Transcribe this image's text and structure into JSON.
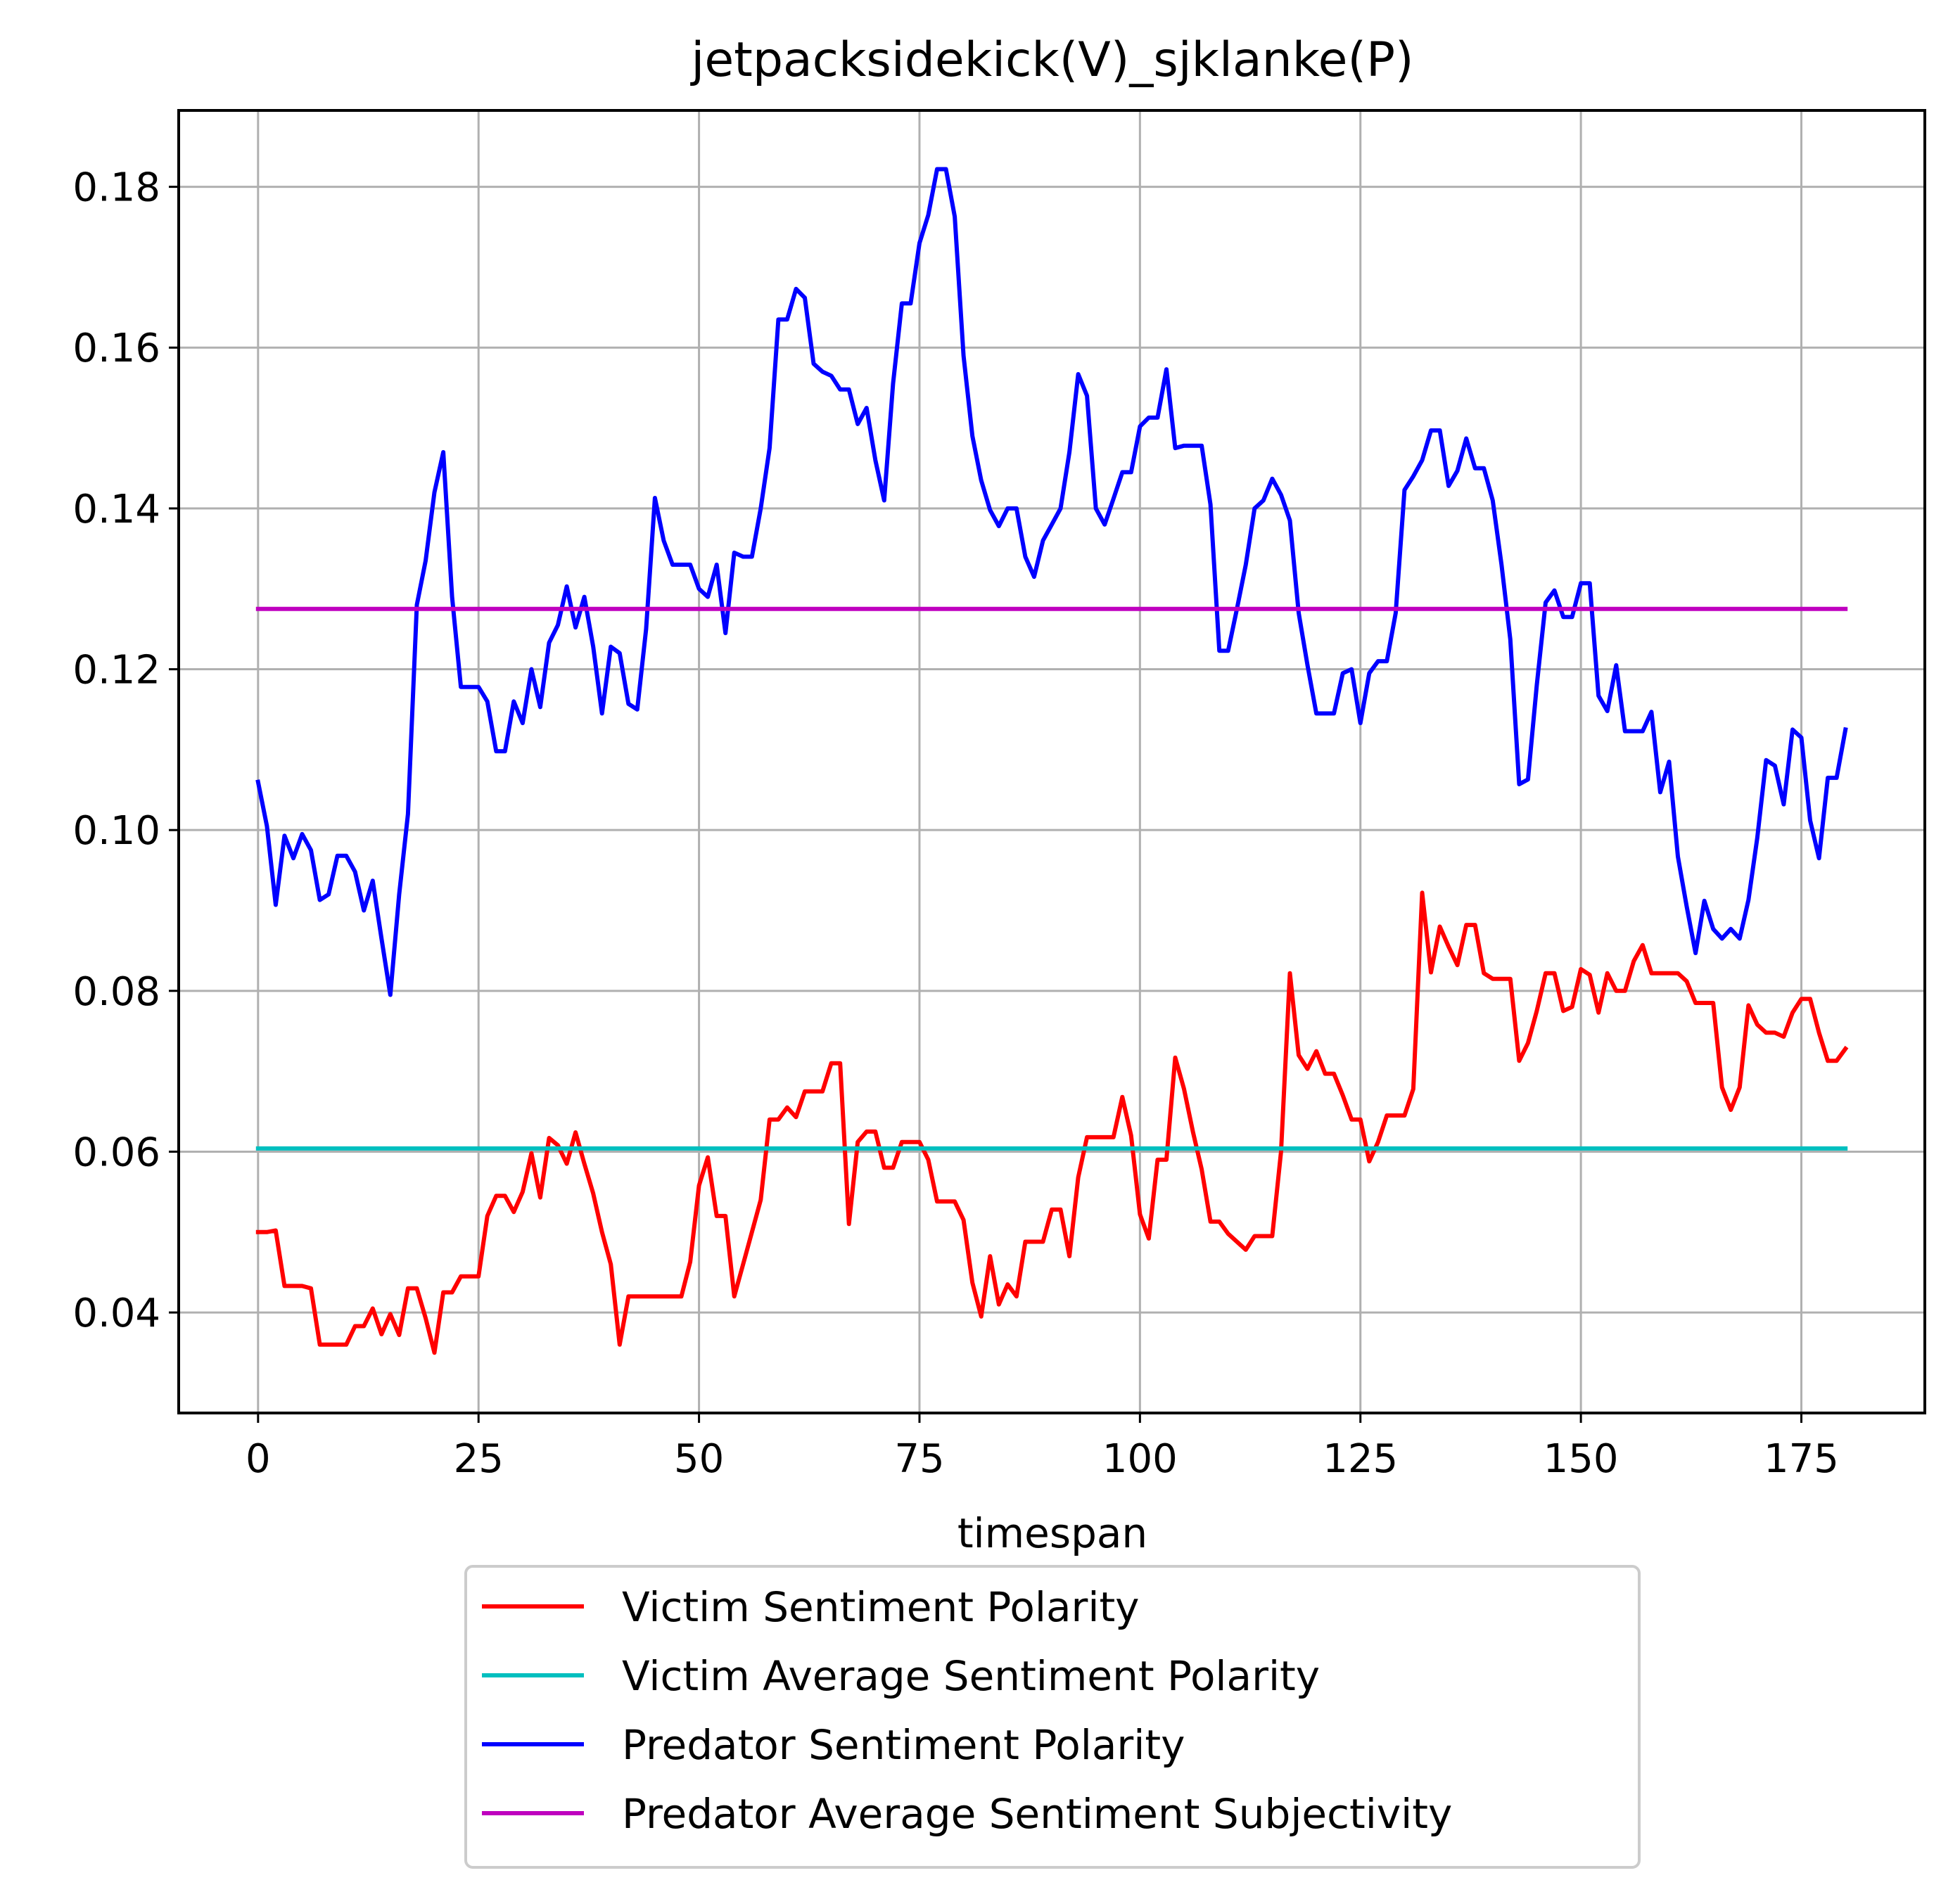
{
  "chart_data": {
    "type": "line",
    "title": "jetpacksidekick(V)_sjklanke(P)",
    "xlabel": "timespan",
    "ylabel": "",
    "xlim": [
      -9,
      189
    ],
    "ylim": [
      0.0275,
      0.1895
    ],
    "xticks": [
      0,
      25,
      50,
      75,
      100,
      125,
      150,
      175
    ],
    "yticks": [
      0.04,
      0.06,
      0.08,
      0.1,
      0.12,
      0.14,
      0.16,
      0.18
    ],
    "xtick_labels": [
      "0",
      "25",
      "50",
      "75",
      "100",
      "125",
      "150",
      "175"
    ],
    "ytick_labels": [
      "0.04",
      "0.06",
      "0.08",
      "0.10",
      "0.12",
      "0.14",
      "0.16",
      "0.18"
    ],
    "grid": true,
    "legend_position": "below plot, centered",
    "series": [
      {
        "name": "Victim Sentiment Polarity",
        "color": "#ff0000",
        "values": [
          0.05,
          0.05,
          0.0502,
          0.0433,
          0.0433,
          0.0433,
          0.043,
          0.036,
          0.036,
          0.036,
          0.036,
          0.0383,
          0.0383,
          0.0405,
          0.0373,
          0.0398,
          0.0372,
          0.043,
          0.043,
          0.0393,
          0.035,
          0.0425,
          0.0425,
          0.0445,
          0.0445,
          0.0445,
          0.052,
          0.0545,
          0.0545,
          0.0525,
          0.055,
          0.0598,
          0.0543,
          0.0617,
          0.0608,
          0.0585,
          0.0624,
          0.0585,
          0.0548,
          0.05,
          0.046,
          0.036,
          0.042,
          0.042,
          0.042,
          0.042,
          0.042,
          0.042,
          0.042,
          0.0463,
          0.0558,
          0.0593,
          0.052,
          0.052,
          0.042,
          0.046,
          0.05,
          0.054,
          0.064,
          0.064,
          0.0655,
          0.0643,
          0.0675,
          0.0675,
          0.0675,
          0.071,
          0.071,
          0.051,
          0.0612,
          0.0625,
          0.0625,
          0.058,
          0.058,
          0.0612,
          0.0612,
          0.0612,
          0.059,
          0.0538,
          0.0538,
          0.0538,
          0.0515,
          0.0437,
          0.0395,
          0.047,
          0.041,
          0.0435,
          0.042,
          0.0488,
          0.0488,
          0.0488,
          0.0528,
          0.0528,
          0.047,
          0.0568,
          0.0618,
          0.0618,
          0.0618,
          0.0618,
          0.0668,
          0.062,
          0.0522,
          0.0492,
          0.059,
          0.059,
          0.0717,
          0.0678,
          0.0625,
          0.0578,
          0.0513,
          0.0513,
          0.0498,
          0.0488,
          0.0478,
          0.0495,
          0.0495,
          0.0495,
          0.06,
          0.0822,
          0.072,
          0.0703,
          0.0725,
          0.0697,
          0.0697,
          0.067,
          0.064,
          0.064,
          0.0588,
          0.0612,
          0.0645,
          0.0645,
          0.0645,
          0.0678,
          0.0922,
          0.0823,
          0.088,
          0.0855,
          0.0832,
          0.0882,
          0.0882,
          0.0822,
          0.0815,
          0.0815,
          0.0815,
          0.0713,
          0.0735,
          0.0775,
          0.0822,
          0.0822,
          0.0775,
          0.078,
          0.0827,
          0.082,
          0.0773,
          0.0822,
          0.08,
          0.08,
          0.0837,
          0.0857,
          0.0822,
          0.0822,
          0.0822,
          0.0822,
          0.0812,
          0.0785,
          0.0785,
          0.0785,
          0.068,
          0.0652,
          0.068,
          0.0782,
          0.0758,
          0.0748,
          0.0748,
          0.0743,
          0.0773,
          0.079,
          0.079,
          0.0748,
          0.0713,
          0.0713,
          0.0728
        ]
      },
      {
        "name": "Victim Average Sentiment Polarity",
        "color": "#00bfbf",
        "x": [
          0,
          180
        ],
        "values": [
          0.0604,
          0.0604
        ]
      },
      {
        "name": "Predator Sentiment Polarity",
        "color": "#0000ff",
        "values": [
          0.106,
          0.1005,
          0.0907,
          0.0993,
          0.0965,
          0.0995,
          0.0975,
          0.0913,
          0.092,
          0.0968,
          0.0968,
          0.0948,
          0.09,
          0.0937,
          0.0865,
          0.0795,
          0.092,
          0.102,
          0.128,
          0.1335,
          0.142,
          0.147,
          0.129,
          0.1178,
          0.1178,
          0.1178,
          0.116,
          0.1098,
          0.1098,
          0.116,
          0.1133,
          0.12,
          0.1153,
          0.1233,
          0.1255,
          0.1303,
          0.1252,
          0.129,
          0.1228,
          0.1145,
          0.1228,
          0.122,
          0.1157,
          0.115,
          0.125,
          0.1413,
          0.136,
          0.133,
          0.133,
          0.133,
          0.13,
          0.129,
          0.133,
          0.1245,
          0.1345,
          0.134,
          0.134,
          0.14,
          0.1475,
          0.1635,
          0.1635,
          0.1673,
          0.1662,
          0.158,
          0.157,
          0.1565,
          0.1548,
          0.1548,
          0.1505,
          0.1525,
          0.146,
          0.141,
          0.1555,
          0.1655,
          0.1655,
          0.173,
          0.1765,
          0.1822,
          0.1822,
          0.1763,
          0.159,
          0.149,
          0.1435,
          0.1398,
          0.1378,
          0.14,
          0.14,
          0.134,
          0.1315,
          0.136,
          0.138,
          0.14,
          0.147,
          0.1567,
          0.154,
          0.14,
          0.138,
          0.1412,
          0.1445,
          0.1445,
          0.1502,
          0.1513,
          0.1513,
          0.1573,
          0.1475,
          0.1478,
          0.1478,
          0.1478,
          0.1405,
          0.1223,
          0.1223,
          0.1275,
          0.133,
          0.14,
          0.141,
          0.1437,
          0.1417,
          0.1385,
          0.127,
          0.1205,
          0.1145,
          0.1145,
          0.1145,
          0.1195,
          0.12,
          0.1133,
          0.1195,
          0.121,
          0.121,
          0.127,
          0.1423,
          0.144,
          0.146,
          0.1497,
          0.1497,
          0.1428,
          0.1447,
          0.1487,
          0.145,
          0.145,
          0.141,
          0.133,
          0.1237,
          0.1057,
          0.1063,
          0.118,
          0.1283,
          0.1298,
          0.1265,
          0.1265,
          0.1307,
          0.1307,
          0.1167,
          0.1148,
          0.1205,
          0.1123,
          0.1123,
          0.1123,
          0.1147,
          0.1047,
          0.1085,
          0.0967,
          0.0905,
          0.0847,
          0.0912,
          0.0877,
          0.0865,
          0.0877,
          0.0865,
          0.0913,
          0.099,
          0.1087,
          0.108,
          0.1032,
          0.1125,
          0.1115,
          0.1012,
          0.0965,
          0.1065,
          0.1065,
          0.1125
        ]
      },
      {
        "name": "Predator Average Sentiment Subjectivity",
        "color": "#bf00bf",
        "x": [
          0,
          180
        ],
        "values": [
          0.1275,
          0.1275
        ]
      }
    ]
  }
}
